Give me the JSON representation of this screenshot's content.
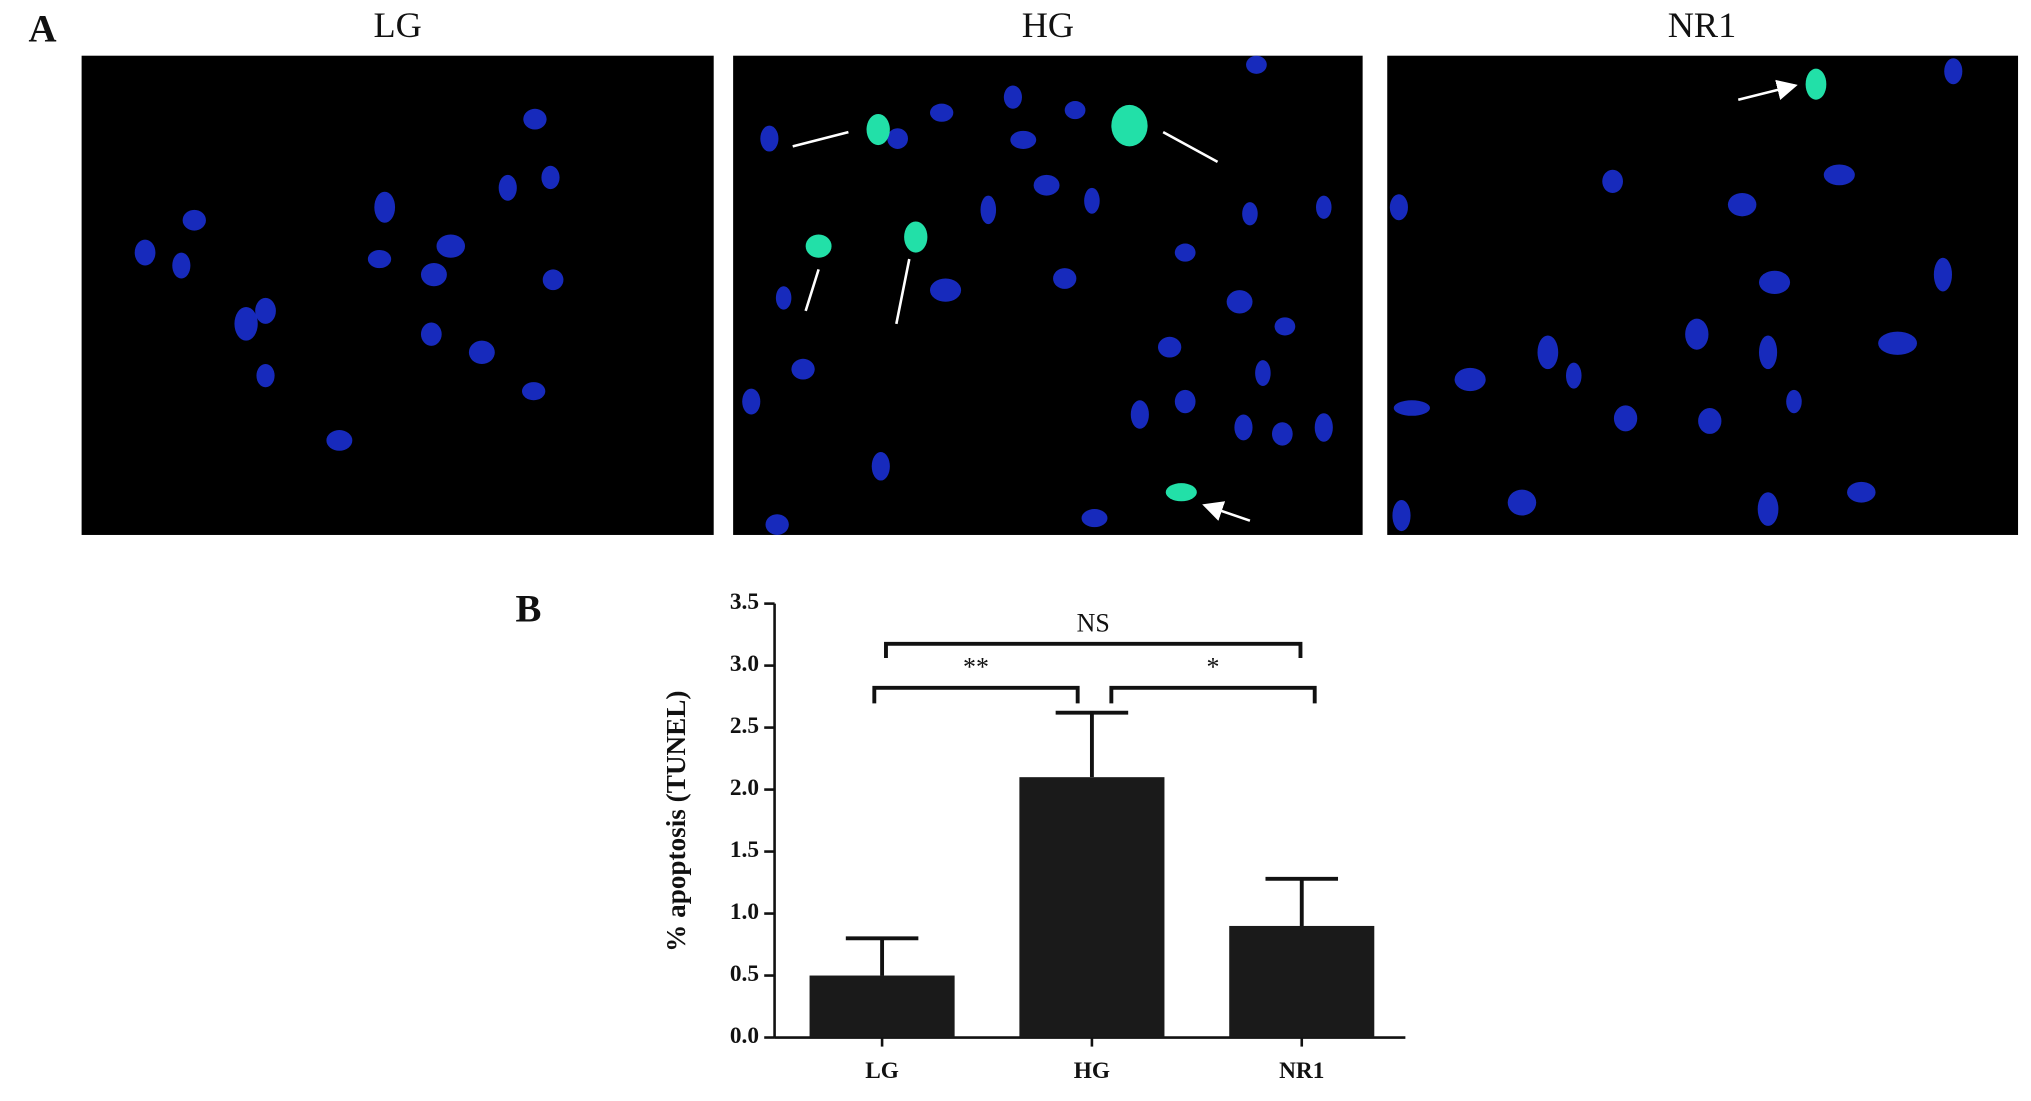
{
  "panel_a": {
    "label": "A",
    "images": [
      {
        "title": "LG"
      },
      {
        "title": "HG"
      },
      {
        "title": "NR1"
      }
    ]
  },
  "chart_data": {
    "type": "bar",
    "panel_label": "B",
    "y_label": "% apoptosis (TUNEL)",
    "categories": [
      "LG",
      "HG",
      "NR1"
    ],
    "values": [
      0.5,
      2.1,
      0.9
    ],
    "errors": [
      0.3,
      0.52,
      0.38
    ],
    "color": "#1a1a1a",
    "ylim": [
      0,
      3.5
    ],
    "yticks": [
      {
        "value": 0,
        "label": "0.0"
      },
      0.5,
      {
        "value": 1,
        "label": "1.0"
      },
      1.5,
      {
        "value": 2,
        "label": "2.0"
      },
      2.5,
      {
        "value": 3,
        "label": "3.0"
      },
      3.5
    ],
    "comparisons": [
      {
        "label": "NS",
        "pair": [
          0,
          2
        ]
      },
      {
        "label": "**",
        "pair": [
          0,
          1
        ]
      },
      {
        "label": "*",
        "pair": [
          1,
          2
        ]
      }
    ]
  }
}
